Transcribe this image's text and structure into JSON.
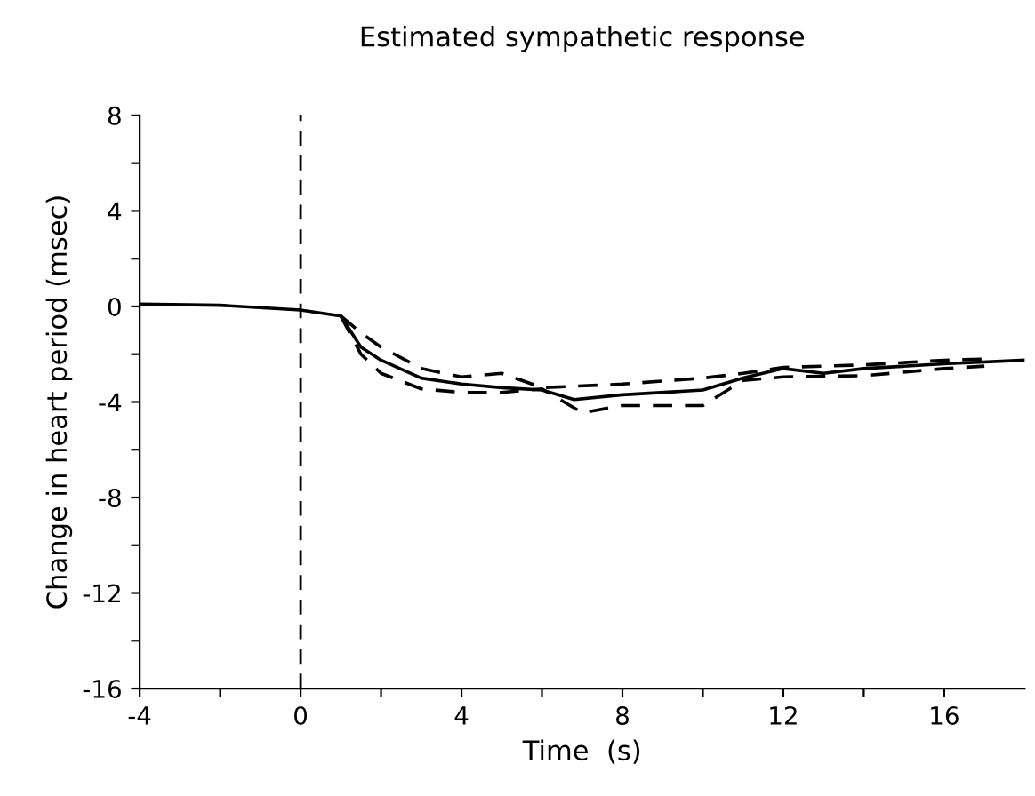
{
  "chart_data": {
    "type": "line",
    "title": "Estimated sympathetic response",
    "xlabel": "Time  (s)",
    "ylabel": "Change in heart period (msec)",
    "xlim": [
      -4,
      18
    ],
    "ylim": [
      -16,
      8
    ],
    "xticks": [
      -4,
      {
        "value": -2,
        "label": null
      },
      0,
      {
        "value": 2,
        "label": null
      },
      4,
      {
        "value": 6,
        "label": null
      },
      8,
      {
        "value": 10,
        "label": null
      },
      12,
      {
        "value": 14,
        "label": null
      },
      16
    ],
    "yticks": [
      -16,
      {
        "value": -14,
        "label": null
      },
      -12,
      {
        "value": -10,
        "label": null
      },
      -8,
      {
        "value": -6,
        "label": null
      },
      -4,
      {
        "value": -2,
        "label": null
      },
      0,
      {
        "value": 2,
        "label": null
      },
      4,
      {
        "value": 6,
        "label": null
      },
      8
    ],
    "series": [
      {
        "color": "#000000",
        "line_style": "solid",
        "x": [
          -4,
          -2,
          0,
          1,
          1.5,
          2,
          3,
          4,
          5,
          6,
          6.8,
          8,
          10,
          11,
          12,
          13,
          14,
          16,
          18
        ],
        "values": [
          0.1,
          0.05,
          -0.15,
          -0.4,
          -1.7,
          -2.25,
          -3.0,
          -3.25,
          -3.4,
          -3.5,
          -3.9,
          -3.7,
          -3.5,
          -3.0,
          -2.6,
          -2.8,
          -2.6,
          -2.4,
          -2.25
        ]
      },
      {
        "color": "#000000",
        "line_style": "dashed",
        "x": [
          1,
          1.5,
          2,
          3,
          4,
          5,
          6,
          8,
          10,
          11,
          12,
          14,
          16,
          17
        ],
        "values": [
          -0.4,
          -1.1,
          -1.7,
          -2.6,
          -2.95,
          -2.8,
          -3.4,
          -3.25,
          -3.0,
          -2.8,
          -2.55,
          -2.45,
          -2.25,
          -2.2
        ]
      },
      {
        "color": "#000000",
        "line_style": "dashed",
        "x": [
          1,
          1.5,
          2,
          3,
          4,
          5,
          6,
          7,
          8,
          10,
          11,
          12,
          14,
          16,
          17
        ],
        "values": [
          -0.4,
          -2.0,
          -2.8,
          -3.45,
          -3.6,
          -3.6,
          -3.45,
          -4.45,
          -4.15,
          -4.15,
          -3.1,
          -2.95,
          -2.9,
          -2.6,
          -2.5
        ]
      }
    ],
    "ref_lines": [
      {
        "axis": "x",
        "value": 0,
        "color": "#000000",
        "line_style": "dashed"
      }
    ],
    "grid": false,
    "legend": false
  }
}
